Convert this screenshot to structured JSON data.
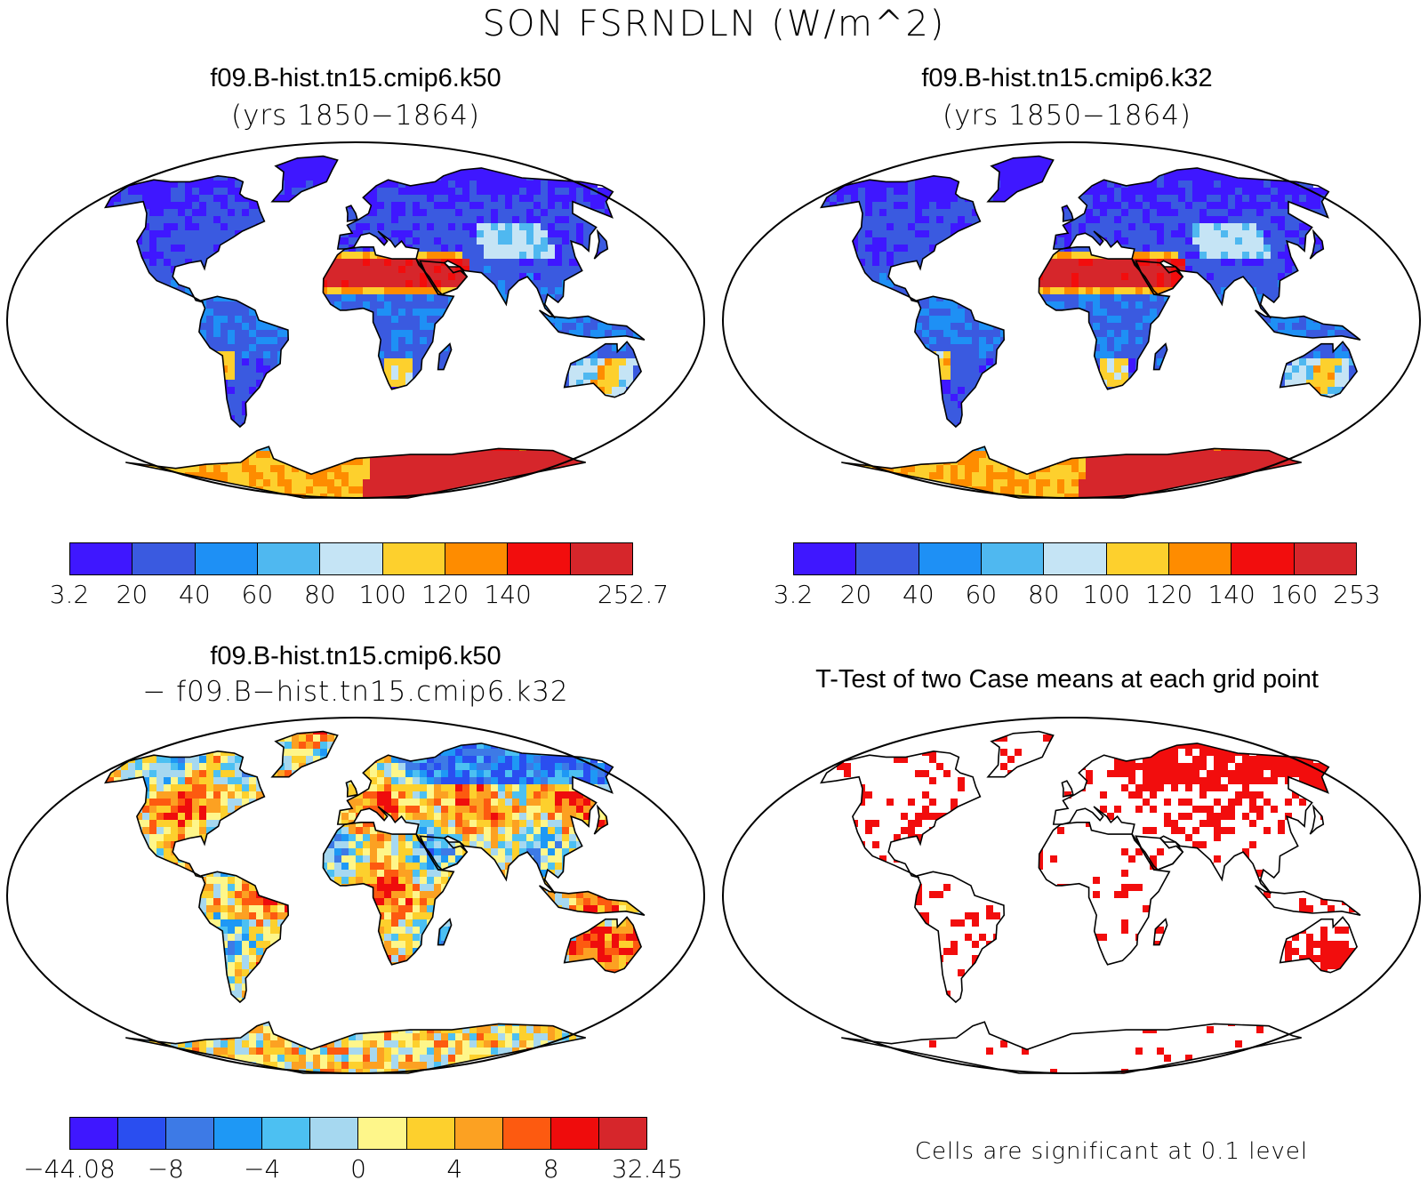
{
  "figure": {
    "title": "SON FSRNDLN (W/m^2)"
  },
  "panels": [
    {
      "id": "case1",
      "title": "f09.B-hist.tn15.cmip6.k50",
      "subtitle": "(yrs 1850−1864)",
      "colorbar": {
        "colors": [
          "#3f17ff",
          "#3a5ae0",
          "#1e90f5",
          "#4fb8f0",
          "#c5e4f5",
          "#fdd02d",
          "#fe8c00",
          "#f20d0d",
          "#d6262b"
        ],
        "ticks": [
          "3.2",
          "20",
          "40",
          "60",
          "80",
          "100",
          "120",
          "140",
          "",
          "252.7"
        ]
      }
    },
    {
      "id": "case2",
      "title": "f09.B-hist.tn15.cmip6.k32",
      "subtitle": "(yrs 1850−1864)",
      "colorbar": {
        "colors": [
          "#3f17ff",
          "#3a5ae0",
          "#1e90f5",
          "#4fb8f0",
          "#c5e4f5",
          "#fdd02d",
          "#fe8c00",
          "#f20d0d",
          "#d6262b"
        ],
        "ticks": [
          "3.2",
          "20",
          "40",
          "60",
          "80",
          "100",
          "120",
          "140",
          "160",
          "253"
        ]
      }
    },
    {
      "id": "difference",
      "title": "f09.B-hist.tn15.cmip6.k50",
      "subtitle": "− f09.B−hist.tn15.cmip6.k32",
      "colorbar": {
        "colors": [
          "#3f17ff",
          "#2a4ef0",
          "#3d7ae6",
          "#1e98f5",
          "#4cc0f2",
          "#a6d8f0",
          "#fef68a",
          "#fdd02d",
          "#fca122",
          "#fd5a10",
          "#ef0c0c",
          "#d6262b"
        ],
        "ticks": [
          "−44.08",
          "",
          "−8",
          "",
          "−4",
          "",
          "0",
          "",
          "4",
          "",
          "8",
          "",
          "32.45"
        ]
      }
    },
    {
      "id": "ttest",
      "title": "T-Test of two Case means at each grid point",
      "note": "Cells are significant at 0.1 level",
      "significance_color": "#f20d0d"
    }
  ]
}
